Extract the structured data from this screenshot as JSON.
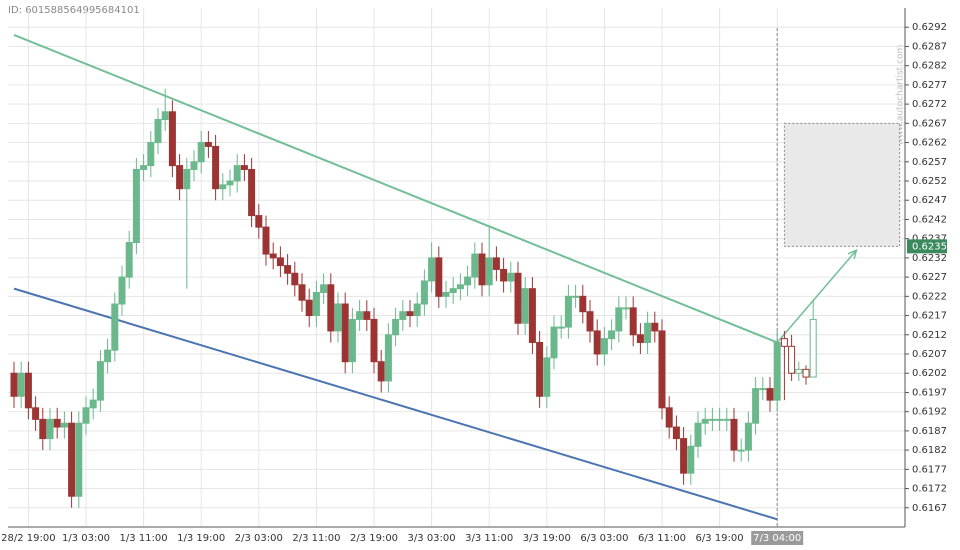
{
  "chart_data": {
    "type": "candlestick",
    "id_label": "ID: 601588564995684101",
    "watermark": "www.autochartist.com",
    "categories": [
      null,
      null,
      "28/2 19:00",
      null,
      null,
      null,
      null,
      null,
      null,
      null,
      "1/3 03:00",
      null,
      null,
      null,
      null,
      null,
      null,
      null,
      "1/3 11:00",
      null,
      null,
      null,
      null,
      null,
      null,
      null,
      "1/3 19:00",
      null,
      null,
      null,
      null,
      null,
      null,
      null,
      "2/3 03:00",
      null,
      null,
      null,
      null,
      null,
      null,
      null,
      "2/3 11:00",
      null,
      null,
      null,
      null,
      null,
      null,
      null,
      "2/3 19:00",
      null,
      null,
      null,
      null,
      null,
      null,
      null,
      "3/3 03:00",
      null,
      null,
      null,
      null,
      null,
      null,
      null,
      "3/3 11:00",
      null,
      null,
      null,
      null,
      null,
      null,
      null,
      "3/3 19:00",
      null,
      null,
      null,
      null,
      null,
      null,
      null,
      "6/3 03:00",
      null,
      null,
      null,
      null,
      null,
      null,
      null,
      "6/3 11:00",
      null,
      null,
      null,
      null,
      null,
      null,
      null,
      "6/3 19:00",
      null,
      null,
      null,
      null,
      null,
      null,
      null,
      "7/3 04:00"
    ],
    "open": [
      0.6202,
      0.6196,
      0.6202,
      0.6193,
      0.619,
      0.6185,
      0.619,
      0.6188,
      0.6189,
      0.617,
      0.6189,
      0.6193,
      0.6195,
      0.6205,
      0.6208,
      0.622,
      0.6227,
      0.6236,
      0.6255,
      0.6256,
      0.6262,
      0.6268,
      0.627,
      0.6256,
      0.625,
      0.6255,
      0.6257,
      0.6262,
      0.6261,
      0.625,
      0.6251,
      0.6252,
      0.6256,
      0.6255,
      0.6243,
      0.624,
      0.6233,
      0.6232,
      0.623,
      0.6228,
      0.6225,
      0.6221,
      0.6217,
      0.6223,
      0.6225,
      0.6213,
      0.622,
      0.6205,
      0.6216,
      0.6218,
      0.6216,
      0.6205,
      0.62,
      0.6212,
      0.6216,
      0.6218,
      0.6217,
      0.622,
      0.6226,
      0.6232,
      0.6222,
      0.6223,
      0.6224,
      0.6225,
      0.6227,
      0.6233,
      0.6225,
      0.6232,
      0.6229,
      0.6226,
      0.6228,
      0.6215,
      0.6224,
      0.621,
      0.6196,
      0.6206,
      0.6214,
      0.6214,
      0.6222,
      0.6222,
      0.6218,
      0.6213,
      0.6207,
      0.6211,
      0.6213,
      0.6219,
      0.6219,
      0.6212,
      0.621,
      0.6215,
      0.6213,
      0.6193,
      0.6188,
      0.6185,
      0.6176,
      0.6183,
      0.6189,
      0.619,
      0.619,
      0.619,
      0.619,
      0.6182,
      0.6182,
      0.6189,
      0.6198,
      0.6198,
      0.6195
    ],
    "high": [
      0.6205,
      0.6205,
      0.6205,
      0.6196,
      0.6193,
      0.6193,
      0.6193,
      0.6192,
      0.6192,
      0.6192,
      0.6196,
      0.6198,
      0.6208,
      0.6211,
      0.6223,
      0.623,
      0.6239,
      0.6258,
      0.6259,
      0.6265,
      0.6271,
      0.6276,
      0.6273,
      0.6259,
      0.6258,
      0.626,
      0.6265,
      0.6265,
      0.6264,
      0.6254,
      0.6255,
      0.6259,
      0.6259,
      0.6258,
      0.6246,
      0.6243,
      0.6236,
      0.6235,
      0.6233,
      0.6231,
      0.6228,
      0.6224,
      0.6226,
      0.6228,
      0.6228,
      0.6223,
      0.6223,
      0.6219,
      0.6221,
      0.6221,
      0.6219,
      0.6208,
      0.6215,
      0.6219,
      0.6221,
      0.6221,
      0.6223,
      0.6229,
      0.6236,
      0.6235,
      0.6226,
      0.6227,
      0.6228,
      0.623,
      0.6236,
      0.6236,
      0.624,
      0.6235,
      0.6232,
      0.6231,
      0.6231,
      0.6227,
      0.6227,
      0.6213,
      0.6209,
      0.6217,
      0.6217,
      0.6225,
      0.6225,
      0.6225,
      0.6221,
      0.6216,
      0.6214,
      0.6216,
      0.6222,
      0.6222,
      0.6222,
      0.6215,
      0.6218,
      0.6218,
      0.6216,
      0.6196,
      0.6191,
      0.6188,
      0.6186,
      0.6192,
      0.6193,
      0.6193,
      0.6193,
      0.6193,
      0.6193,
      0.6185,
      0.6192,
      0.6201,
      0.6201,
      0.6201,
      0.6213
    ],
    "low": [
      0.6193,
      0.6193,
      0.619,
      0.6187,
      0.6182,
      0.6182,
      0.6185,
      0.6185,
      0.6167,
      0.6167,
      0.6186,
      0.619,
      0.6192,
      0.6202,
      0.6205,
      0.6217,
      0.6224,
      0.6233,
      0.6252,
      0.6253,
      0.6259,
      0.6265,
      0.6253,
      0.6247,
      0.6224,
      0.6252,
      0.6254,
      0.6258,
      0.6247,
      0.6247,
      0.6248,
      0.6249,
      0.6252,
      0.624,
      0.6237,
      0.623,
      0.6229,
      0.6227,
      0.6225,
      0.6222,
      0.6218,
      0.6214,
      0.6214,
      0.622,
      0.621,
      0.621,
      0.6202,
      0.6202,
      0.6213,
      0.6213,
      0.6202,
      0.6197,
      0.6197,
      0.6209,
      0.6213,
      0.6214,
      0.6214,
      0.6217,
      0.6223,
      0.6219,
      0.6219,
      0.622,
      0.6221,
      0.6222,
      0.6224,
      0.6222,
      0.6222,
      0.6226,
      0.6223,
      0.6223,
      0.6212,
      0.6212,
      0.6207,
      0.6193,
      0.6193,
      0.6203,
      0.6211,
      0.6211,
      0.6219,
      0.6215,
      0.621,
      0.6204,
      0.6204,
      0.6208,
      0.621,
      0.6216,
      0.6209,
      0.6207,
      0.6207,
      0.621,
      0.619,
      0.6185,
      0.6182,
      0.6173,
      0.6173,
      0.618,
      0.6186,
      0.6187,
      0.6187,
      0.6187,
      0.6179,
      0.6179,
      0.6179,
      0.6186,
      0.6195,
      0.6192,
      0.6192
    ],
    "close": [
      0.6196,
      0.6202,
      0.6193,
      0.619,
      0.6185,
      0.619,
      0.6188,
      0.6189,
      0.617,
      0.6189,
      0.6193,
      0.6195,
      0.6205,
      0.6208,
      0.622,
      0.6227,
      0.6236,
      0.6255,
      0.6256,
      0.6262,
      0.6268,
      0.627,
      0.6256,
      0.625,
      0.6255,
      0.6257,
      0.6262,
      0.6261,
      0.625,
      0.6251,
      0.6252,
      0.6256,
      0.6255,
      0.6243,
      0.624,
      0.6233,
      0.6232,
      0.623,
      0.6228,
      0.6225,
      0.6221,
      0.6217,
      0.6223,
      0.6225,
      0.6213,
      0.622,
      0.6205,
      0.6216,
      0.6218,
      0.6216,
      0.6205,
      0.62,
      0.6212,
      0.6216,
      0.6218,
      0.6217,
      0.622,
      0.6226,
      0.6232,
      0.6222,
      0.6223,
      0.6224,
      0.6225,
      0.6227,
      0.6233,
      0.6225,
      0.6232,
      0.6229,
      0.6226,
      0.6228,
      0.6215,
      0.6224,
      0.621,
      0.6196,
      0.6206,
      0.6214,
      0.6214,
      0.6222,
      0.6222,
      0.6218,
      0.6213,
      0.6207,
      0.6211,
      0.6213,
      0.6219,
      0.6219,
      0.6212,
      0.621,
      0.6215,
      0.6213,
      0.6193,
      0.6188,
      0.6185,
      0.6176,
      0.6183,
      0.6189,
      0.619,
      0.619,
      0.619,
      0.619,
      0.6182,
      0.6182,
      0.6189,
      0.6198,
      0.6198,
      0.6195,
      0.621
    ],
    "forecast": {
      "open": [
        0.6211,
        0.6209,
        0.6202,
        0.6203,
        0.6201
      ],
      "high": [
        0.6213,
        0.6212,
        0.6205,
        0.6204,
        0.6221
      ],
      "low": [
        0.6195,
        0.62,
        0.62,
        0.6199,
        0.6201
      ],
      "close": [
        0.6209,
        0.6202,
        0.6203,
        0.6201,
        0.6216
      ]
    },
    "up_color": "#6ab88c",
    "down_color": "#9c3434",
    "trendlines": [
      {
        "x": [
          0,
          106
        ],
        "y": [
          0.629,
          0.621
        ],
        "color": "#72bf97"
      },
      {
        "x": [
          0,
          106
        ],
        "y": [
          0.6224,
          0.6164
        ],
        "color": "#4c74b0"
      }
    ],
    "arrow": {
      "x": [
        106,
        117
      ],
      "y": [
        0.621,
        0.6234
      ],
      "color": "#72bf97"
    },
    "zone": {
      "x": [
        107,
        123
      ],
      "y": [
        0.6235,
        0.6267
      ],
      "color": "#e8e9e8"
    },
    "target_label": 0.6235,
    "ylim": [
      0.6162,
      0.6297
    ],
    "yticks": [
      0.6167,
      0.6172,
      0.6177,
      0.6182,
      0.6187,
      0.6192,
      0.6197,
      0.6202,
      0.6207,
      0.6212,
      0.6217,
      0.6222,
      0.6227,
      0.6232,
      0.6237,
      0.6242,
      0.6247,
      0.6252,
      0.6257,
      0.6262,
      0.6267,
      0.6272,
      0.6277,
      0.6282,
      0.6287,
      0.6292
    ],
    "grid": true
  }
}
